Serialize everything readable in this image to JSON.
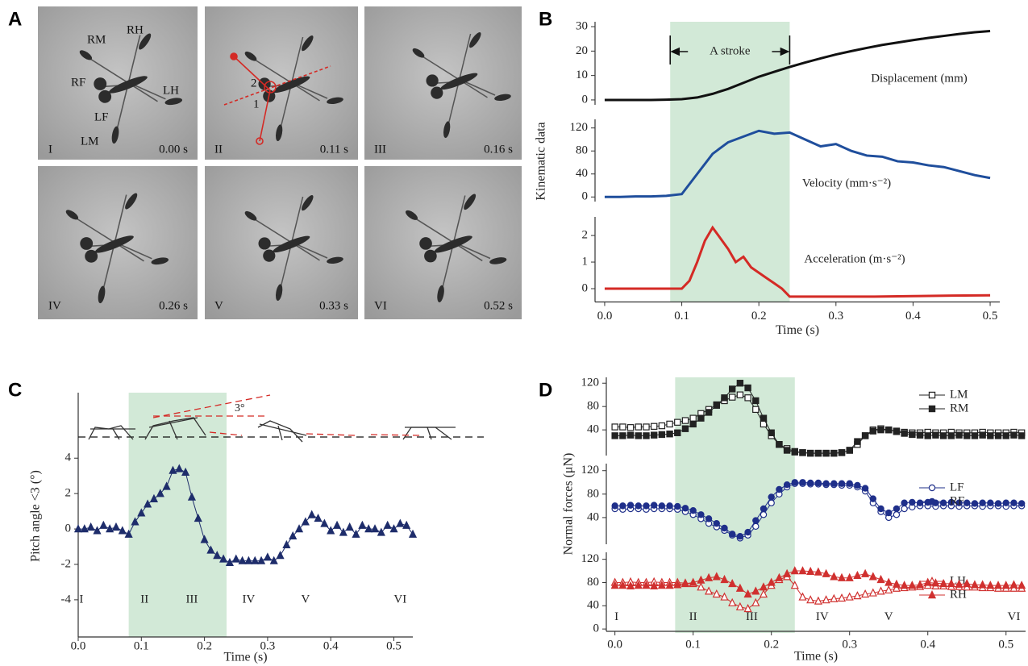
{
  "panels": [
    "A",
    "B",
    "C",
    "D"
  ],
  "photos": [
    {
      "label": "I",
      "time": "0.00 s"
    },
    {
      "label": "II",
      "time": "0.11 s"
    },
    {
      "label": "III",
      "time": "0.16 s"
    },
    {
      "label": "IV",
      "time": "0.26 s"
    },
    {
      "label": "V",
      "time": "0.33 s"
    },
    {
      "label": "VI",
      "time": "0.52 s"
    }
  ],
  "leg_labels": [
    "RM",
    "RH",
    "RF",
    "LH",
    "LF",
    "LM"
  ],
  "angle_labels": [
    "1",
    "2"
  ],
  "chart_data": [
    {
      "type": "line",
      "xlim": [
        -0.0125,
        0.5125
      ],
      "ylim": [
        -2,
        32
      ],
      "yticks": [
        0,
        10,
        20,
        30
      ],
      "label": "Displacement (mm)",
      "annotation": "A stroke",
      "span": [
        0.085,
        0.24
      ],
      "x": [
        0,
        0.02,
        0.04,
        0.06,
        0.08,
        0.1,
        0.12,
        0.14,
        0.16,
        0.18,
        0.2,
        0.22,
        0.24,
        0.26,
        0.28,
        0.3,
        0.32,
        0.34,
        0.36,
        0.38,
        0.4,
        0.42,
        0.44,
        0.46,
        0.48,
        0.5
      ],
      "series": [
        {
          "color": "#111111",
          "values": [
            0,
            0,
            0,
            0,
            0.1,
            0.3,
            1,
            2.5,
            4.5,
            7,
            9.5,
            11.5,
            13.5,
            15.3,
            17,
            18.6,
            20,
            21.3,
            22.5,
            23.5,
            24.5,
            25.4,
            26.2,
            27,
            27.7,
            28.2
          ]
        }
      ]
    },
    {
      "type": "line",
      "xlim": [
        -0.0125,
        0.5125
      ],
      "ylim": [
        -8,
        135
      ],
      "yticks": [
        0,
        40,
        80,
        120
      ],
      "label": "Velocity (mm·s⁻²)",
      "ylabel": "Kinematic data",
      "x": [
        0,
        0.02,
        0.04,
        0.06,
        0.08,
        0.1,
        0.12,
        0.14,
        0.16,
        0.18,
        0.2,
        0.22,
        0.24,
        0.26,
        0.28,
        0.3,
        0.32,
        0.34,
        0.36,
        0.38,
        0.4,
        0.42,
        0.44,
        0.46,
        0.48,
        0.5
      ],
      "series": [
        {
          "color": "#1f4e9c",
          "values": [
            0,
            0,
            1,
            1,
            2,
            5,
            40,
            75,
            95,
            105,
            115,
            110,
            112,
            100,
            88,
            92,
            80,
            72,
            70,
            62,
            60,
            55,
            52,
            45,
            38,
            33
          ]
        }
      ]
    },
    {
      "type": "line",
      "xlim": [
        -0.0125,
        0.5125
      ],
      "ylim": [
        -0.5,
        2.7
      ],
      "yticks": [
        0,
        1,
        2
      ],
      "label": "Acceleration (m·s⁻²)",
      "xlabel": "Time (s)",
      "xticks": [
        {
          "value": 0,
          "label": "0.0"
        },
        0.1,
        0.2,
        0.3,
        0.4,
        0.5
      ],
      "x": [
        0,
        0.05,
        0.1,
        0.11,
        0.12,
        0.13,
        0.14,
        0.15,
        0.16,
        0.17,
        0.18,
        0.19,
        0.2,
        0.21,
        0.22,
        0.23,
        0.24,
        0.25,
        0.3,
        0.35,
        0.4,
        0.45,
        0.5
      ],
      "series": [
        {
          "color": "#d42a25",
          "values": [
            0,
            0,
            0,
            0.3,
            1,
            1.8,
            2.3,
            1.9,
            1.5,
            1.0,
            1.2,
            0.8,
            0.6,
            0.4,
            0.2,
            0,
            -0.3,
            -0.3,
            -0.3,
            -0.3,
            -0.28,
            -0.26,
            -0.25
          ]
        }
      ]
    },
    {
      "type": "line",
      "xlim": [
        0,
        0.53
      ],
      "ylim": [
        -6.1,
        7.7
      ],
      "yticks": [
        -4,
        -2,
        0,
        2,
        4
      ],
      "xticks": [
        {
          "value": 0,
          "label": "0.0"
        },
        0.1,
        0.2,
        0.3,
        0.4,
        0.5
      ],
      "xlabel": "Time (s)",
      "ylabel": "Pitch angle <3 (°)",
      "annotation": "3°",
      "span": [
        0.08,
        0.235
      ],
      "numerals": [
        {
          "label": "I",
          "x": 0.005,
          "y": -4
        },
        {
          "label": "II",
          "x": 0.105,
          "y": -4
        },
        {
          "label": "III",
          "x": 0.18,
          "y": -4
        },
        {
          "label": "IV",
          "x": 0.27,
          "y": -4
        },
        {
          "label": "V",
          "x": 0.36,
          "y": -4
        },
        {
          "label": "VI",
          "x": 0.51,
          "y": -4
        }
      ],
      "x": [
        0,
        0.01,
        0.02,
        0.03,
        0.04,
        0.05,
        0.06,
        0.07,
        0.08,
        0.09,
        0.1,
        0.11,
        0.12,
        0.13,
        0.14,
        0.15,
        0.16,
        0.17,
        0.18,
        0.19,
        0.2,
        0.21,
        0.22,
        0.23,
        0.24,
        0.25,
        0.26,
        0.27,
        0.28,
        0.29,
        0.3,
        0.31,
        0.32,
        0.33,
        0.34,
        0.35,
        0.36,
        0.37,
        0.38,
        0.39,
        0.4,
        0.41,
        0.42,
        0.43,
        0.44,
        0.45,
        0.46,
        0.47,
        0.48,
        0.49,
        0.5,
        0.51,
        0.52,
        0.53
      ],
      "series": [
        {
          "color": "#1e2d6b",
          "marker": "triangle",
          "values": [
            0,
            0,
            0.1,
            -0.1,
            0.2,
            0,
            0.1,
            -0.1,
            -0.3,
            0.4,
            0.9,
            1.4,
            1.7,
            2.0,
            2.4,
            3.3,
            3.4,
            3.2,
            1.8,
            0.6,
            -0.6,
            -1.2,
            -1.5,
            -1.7,
            -1.9,
            -1.7,
            -1.8,
            -1.8,
            -1.8,
            -1.8,
            -1.6,
            -1.8,
            -1.5,
            -0.9,
            -0.4,
            0,
            0.4,
            0.8,
            0.6,
            0.3,
            -0.1,
            0.2,
            -0.2,
            0.1,
            -0.3,
            0.2,
            0,
            0,
            -0.2,
            0.2,
            0,
            0.3,
            0.2,
            -0.3
          ]
        }
      ]
    },
    {
      "type": "line",
      "xlim": [
        -0.011,
        0.525
      ],
      "ylim": [
        -4,
        130
      ],
      "yticks": [
        40,
        80,
        120
      ],
      "span": [
        0.077,
        0.23
      ],
      "x": [
        0,
        0.01,
        0.02,
        0.03,
        0.04,
        0.05,
        0.06,
        0.07,
        0.08,
        0.09,
        0.1,
        0.11,
        0.12,
        0.13,
        0.14,
        0.15,
        0.16,
        0.17,
        0.18,
        0.19,
        0.2,
        0.21,
        0.22,
        0.23,
        0.24,
        0.25,
        0.26,
        0.27,
        0.28,
        0.29,
        0.3,
        0.31,
        0.32,
        0.33,
        0.34,
        0.35,
        0.36,
        0.37,
        0.38,
        0.39,
        0.4,
        0.41,
        0.42,
        0.43,
        0.44,
        0.45,
        0.46,
        0.47,
        0.48,
        0.49,
        0.5,
        0.51,
        0.52
      ],
      "series": [
        {
          "name": "LM",
          "color": "#222222",
          "marker": "square-open",
          "values": [
            45,
            45,
            44,
            45,
            45,
            46,
            47,
            50,
            53,
            56,
            60,
            68,
            75,
            83,
            90,
            96,
            100,
            95,
            75,
            50,
            30,
            15,
            8,
            3,
            1,
            0,
            0,
            0,
            0,
            1,
            5,
            15,
            30,
            40,
            42,
            40,
            38,
            36,
            35,
            35,
            36,
            35,
            35,
            36,
            35,
            35,
            35,
            36,
            35,
            35,
            35,
            36,
            35
          ]
        },
        {
          "name": "RM",
          "color": "#222222",
          "marker": "square",
          "values": [
            30,
            30,
            31,
            30,
            30,
            31,
            32,
            33,
            35,
            42,
            50,
            60,
            70,
            82,
            95,
            110,
            120,
            112,
            90,
            60,
            35,
            15,
            5,
            2,
            1,
            0,
            0,
            0,
            0,
            1,
            5,
            20,
            30,
            38,
            40,
            40,
            37,
            34,
            32,
            31,
            30,
            31,
            30,
            30,
            31,
            30,
            30,
            31,
            30,
            30,
            30,
            31,
            30
          ]
        }
      ]
    },
    {
      "type": "line",
      "xlim": [
        -0.011,
        0.525
      ],
      "ylim": [
        -5.5,
        132
      ],
      "yticks": [
        40,
        80,
        120
      ],
      "ylabel": "Normal forces (μN)",
      "x": [
        0,
        0.01,
        0.02,
        0.03,
        0.04,
        0.05,
        0.06,
        0.07,
        0.08,
        0.09,
        0.1,
        0.11,
        0.12,
        0.13,
        0.14,
        0.15,
        0.16,
        0.17,
        0.18,
        0.19,
        0.2,
        0.21,
        0.22,
        0.23,
        0.24,
        0.25,
        0.26,
        0.27,
        0.28,
        0.29,
        0.3,
        0.31,
        0.32,
        0.33,
        0.34,
        0.35,
        0.36,
        0.37,
        0.38,
        0.39,
        0.4,
        0.41,
        0.42,
        0.43,
        0.44,
        0.45,
        0.46,
        0.47,
        0.48,
        0.49,
        0.5,
        0.51,
        0.52
      ],
      "series": [
        {
          "name": "LF",
          "color": "#1f2f8a",
          "marker": "circle-open",
          "values": [
            55,
            54,
            55,
            55,
            54,
            55,
            55,
            55,
            54,
            50,
            45,
            38,
            30,
            24,
            18,
            10,
            5,
            10,
            25,
            45,
            65,
            80,
            92,
            98,
            98,
            97,
            97,
            96,
            96,
            95,
            95,
            92,
            85,
            65,
            50,
            40,
            45,
            55,
            58,
            60,
            60,
            59,
            60,
            60,
            59,
            60,
            60,
            59,
            60,
            60,
            59,
            60,
            60
          ]
        },
        {
          "name": "RF",
          "color": "#1f2f8a",
          "marker": "circle",
          "values": [
            60,
            60,
            61,
            60,
            60,
            61,
            60,
            60,
            59,
            56,
            52,
            45,
            38,
            30,
            22,
            12,
            8,
            15,
            35,
            55,
            75,
            88,
            96,
            100,
            100,
            99,
            99,
            98,
            98,
            98,
            98,
            95,
            90,
            72,
            55,
            48,
            55,
            65,
            66,
            65,
            66,
            65,
            65,
            66,
            65,
            65,
            64,
            65,
            65,
            64,
            65,
            65,
            64
          ]
        }
      ]
    },
    {
      "type": "line",
      "xlim": [
        -0.011,
        0.525
      ],
      "ylim": [
        -4,
        132
      ],
      "yticks": [
        0,
        40,
        80,
        120
      ],
      "xticks": [
        {
          "value": 0,
          "label": "0.0"
        },
        0.1,
        0.2,
        0.3,
        0.4,
        0.5
      ],
      "xlabel": "Time (s)",
      "numerals": [
        {
          "label": "I",
          "x": 0.002,
          "y": 20
        },
        {
          "label": "II",
          "x": 0.1,
          "y": 20
        },
        {
          "label": "III",
          "x": 0.175,
          "y": 20
        },
        {
          "label": "IV",
          "x": 0.265,
          "y": 20
        },
        {
          "label": "V",
          "x": 0.35,
          "y": 20
        },
        {
          "label": "VI",
          "x": 0.51,
          "y": 20
        }
      ],
      "x": [
        0,
        0.01,
        0.02,
        0.03,
        0.04,
        0.05,
        0.06,
        0.07,
        0.08,
        0.09,
        0.1,
        0.11,
        0.12,
        0.13,
        0.14,
        0.15,
        0.16,
        0.17,
        0.18,
        0.19,
        0.2,
        0.21,
        0.22,
        0.23,
        0.24,
        0.25,
        0.26,
        0.27,
        0.28,
        0.29,
        0.3,
        0.31,
        0.32,
        0.33,
        0.34,
        0.35,
        0.36,
        0.37,
        0.38,
        0.39,
        0.4,
        0.41,
        0.42,
        0.43,
        0.44,
        0.45,
        0.46,
        0.47,
        0.48,
        0.49,
        0.5,
        0.51,
        0.52
      ],
      "series": [
        {
          "name": "LH",
          "color": "#d0302f",
          "marker": "triangle-open",
          "values": [
            80,
            80,
            81,
            80,
            80,
            81,
            80,
            80,
            80,
            79,
            78,
            72,
            65,
            60,
            55,
            45,
            38,
            35,
            45,
            60,
            75,
            85,
            90,
            75,
            55,
            50,
            48,
            50,
            52,
            53,
            55,
            57,
            60,
            62,
            65,
            67,
            70,
            71,
            72,
            73,
            75,
            74,
            74,
            73,
            73,
            72,
            72,
            71,
            71,
            70,
            70,
            70,
            70
          ]
        },
        {
          "name": "RH",
          "color": "#d0302f",
          "marker": "triangle",
          "values": [
            75,
            75,
            74,
            75,
            75,
            74,
            75,
            75,
            76,
            78,
            80,
            84,
            88,
            90,
            85,
            78,
            70,
            60,
            65,
            72,
            80,
            88,
            95,
            100,
            100,
            99,
            98,
            95,
            90,
            88,
            88,
            92,
            95,
            90,
            85,
            80,
            77,
            75,
            75,
            76,
            80,
            79,
            78,
            78,
            77,
            78,
            76,
            76,
            75,
            75,
            75,
            76,
            75
          ]
        }
      ]
    }
  ]
}
